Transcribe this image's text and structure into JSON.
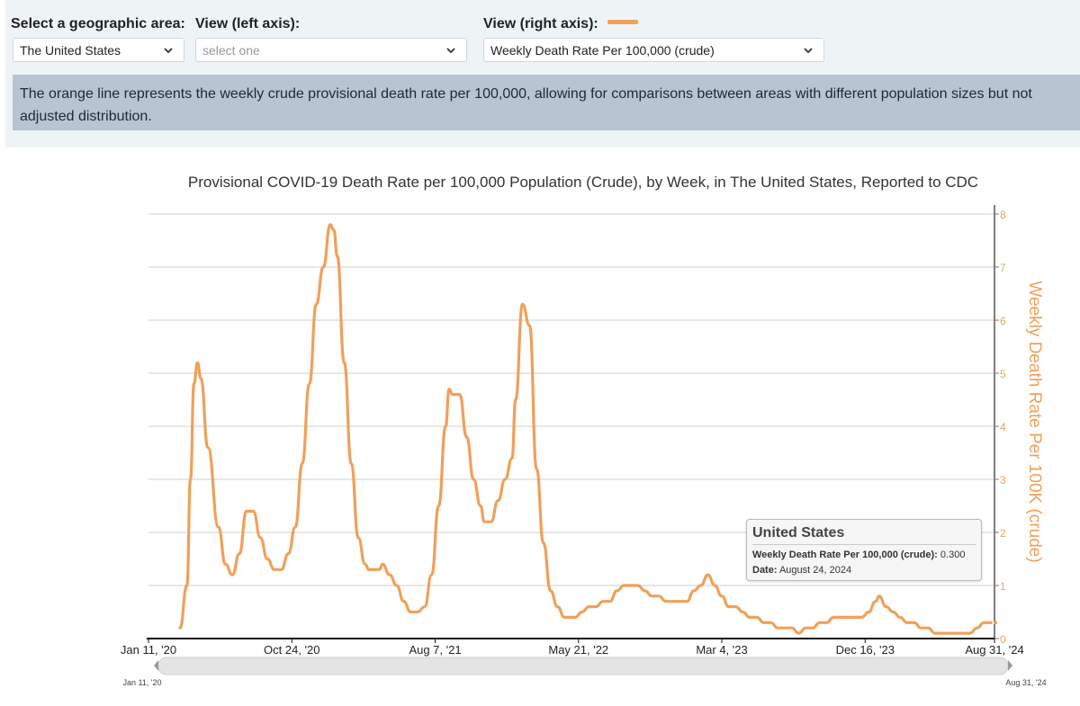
{
  "controls": {
    "geo_label": "Select a geographic area:",
    "geo_value": "The United States",
    "left_label": "View (left axis):",
    "left_placeholder": "select one",
    "right_label": "View (right axis):",
    "right_value": "Weekly Death Rate Per 100,000 (crude)"
  },
  "info_text": "The orange line represents the weekly crude provisional death rate per 100,000, allowing for comparisons between areas with different population sizes but not adjusted distribution.",
  "colors": {
    "line": "#f0a05a",
    "axis_title": "#f0a05a"
  },
  "tooltip": {
    "title": "United States",
    "metric_label": "Weekly Death Rate Per 100,000 (crude):",
    "metric_value": "0.300",
    "date_label": "Date:",
    "date_value": "August 24, 2024"
  },
  "slider": {
    "start_label": "Jan 11, '20",
    "end_label": "Aug 31, '24"
  },
  "chart_data": {
    "type": "line",
    "title": "Provisional COVID-19 Death Rate per 100,000 Population (Crude), by Week, in The United States, Reported to CDC",
    "ylabel": "Weekly Death Rate Per 100K (crude)",
    "xlabel": "",
    "ylim": [
      0,
      8
    ],
    "y_ticks": [
      "0",
      "1",
      "2",
      "3",
      "4",
      "5",
      "6",
      "7",
      "8"
    ],
    "x_domain": [
      "2020-01-11",
      "2024-08-31"
    ],
    "x_ticks": [
      {
        "label": "Jan 11, '20",
        "date": "2020-01-11"
      },
      {
        "label": "Oct 24, '20",
        "date": "2020-10-24"
      },
      {
        "label": "Aug 7, '21",
        "date": "2021-08-07"
      },
      {
        "label": "May 21, '22",
        "date": "2022-05-21"
      },
      {
        "label": "Mar 4, '23",
        "date": "2023-03-04"
      },
      {
        "label": "Dec 16, '23",
        "date": "2023-12-16"
      },
      {
        "label": "Aug 31, '24",
        "date": "2024-08-31"
      }
    ],
    "grid": true,
    "series": [
      {
        "name": "Weekly Death Rate Per 100,000 (crude)",
        "points": [
          [
            "2020-03-14",
            0.2
          ],
          [
            "2020-03-28",
            1.0
          ],
          [
            "2020-04-04",
            3.0
          ],
          [
            "2020-04-11",
            4.8
          ],
          [
            "2020-04-18",
            5.2
          ],
          [
            "2020-04-25",
            4.9
          ],
          [
            "2020-05-09",
            3.6
          ],
          [
            "2020-05-30",
            2.1
          ],
          [
            "2020-06-13",
            1.4
          ],
          [
            "2020-06-27",
            1.2
          ],
          [
            "2020-07-11",
            1.6
          ],
          [
            "2020-07-25",
            2.4
          ],
          [
            "2020-08-08",
            2.4
          ],
          [
            "2020-08-22",
            1.9
          ],
          [
            "2020-09-05",
            1.5
          ],
          [
            "2020-09-19",
            1.3
          ],
          [
            "2020-10-03",
            1.3
          ],
          [
            "2020-10-17",
            1.6
          ],
          [
            "2020-10-31",
            2.1
          ],
          [
            "2020-11-14",
            3.3
          ],
          [
            "2020-11-28",
            4.8
          ],
          [
            "2020-12-12",
            6.3
          ],
          [
            "2020-12-26",
            7.0
          ],
          [
            "2021-01-09",
            7.8
          ],
          [
            "2021-01-16",
            7.7
          ],
          [
            "2021-01-23",
            7.2
          ],
          [
            "2021-02-06",
            5.2
          ],
          [
            "2021-02-20",
            3.3
          ],
          [
            "2021-03-06",
            1.9
          ],
          [
            "2021-03-20",
            1.4
          ],
          [
            "2021-03-27",
            1.3
          ],
          [
            "2021-04-17",
            1.3
          ],
          [
            "2021-04-24",
            1.4
          ],
          [
            "2021-05-08",
            1.2
          ],
          [
            "2021-05-22",
            1.0
          ],
          [
            "2021-06-05",
            0.7
          ],
          [
            "2021-06-19",
            0.5
          ],
          [
            "2021-07-03",
            0.5
          ],
          [
            "2021-07-17",
            0.6
          ],
          [
            "2021-07-31",
            1.2
          ],
          [
            "2021-08-14",
            2.5
          ],
          [
            "2021-08-28",
            4.0
          ],
          [
            "2021-09-04",
            4.7
          ],
          [
            "2021-09-11",
            4.6
          ],
          [
            "2021-09-25",
            4.6
          ],
          [
            "2021-10-09",
            3.8
          ],
          [
            "2021-10-23",
            3.0
          ],
          [
            "2021-11-06",
            2.5
          ],
          [
            "2021-11-13",
            2.2
          ],
          [
            "2021-11-27",
            2.2
          ],
          [
            "2021-12-11",
            2.6
          ],
          [
            "2021-12-25",
            3.0
          ],
          [
            "2022-01-08",
            3.4
          ],
          [
            "2022-01-15",
            4.5
          ],
          [
            "2022-01-29",
            6.3
          ],
          [
            "2022-02-12",
            5.9
          ],
          [
            "2022-02-26",
            3.2
          ],
          [
            "2022-03-12",
            1.8
          ],
          [
            "2022-03-26",
            0.9
          ],
          [
            "2022-04-09",
            0.6
          ],
          [
            "2022-04-23",
            0.4
          ],
          [
            "2022-05-14",
            0.4
          ],
          [
            "2022-05-28",
            0.5
          ],
          [
            "2022-06-11",
            0.6
          ],
          [
            "2022-06-25",
            0.6
          ],
          [
            "2022-07-09",
            0.7
          ],
          [
            "2022-07-23",
            0.7
          ],
          [
            "2022-08-06",
            0.9
          ],
          [
            "2022-08-20",
            1.0
          ],
          [
            "2022-09-17",
            1.0
          ],
          [
            "2022-10-01",
            0.9
          ],
          [
            "2022-10-15",
            0.8
          ],
          [
            "2022-10-29",
            0.8
          ],
          [
            "2022-11-12",
            0.7
          ],
          [
            "2022-11-26",
            0.7
          ],
          [
            "2022-12-10",
            0.7
          ],
          [
            "2022-12-24",
            0.7
          ],
          [
            "2023-01-07",
            0.9
          ],
          [
            "2023-01-21",
            1.0
          ],
          [
            "2023-02-04",
            1.2
          ],
          [
            "2023-02-18",
            1.0
          ],
          [
            "2023-03-04",
            0.8
          ],
          [
            "2023-03-18",
            0.6
          ],
          [
            "2023-04-01",
            0.6
          ],
          [
            "2023-04-15",
            0.5
          ],
          [
            "2023-04-29",
            0.4
          ],
          [
            "2023-05-13",
            0.4
          ],
          [
            "2023-05-27",
            0.3
          ],
          [
            "2023-06-10",
            0.3
          ],
          [
            "2023-06-24",
            0.2
          ],
          [
            "2023-07-22",
            0.2
          ],
          [
            "2023-08-05",
            0.1
          ],
          [
            "2023-08-19",
            0.2
          ],
          [
            "2023-09-02",
            0.2
          ],
          [
            "2023-09-16",
            0.3
          ],
          [
            "2023-09-30",
            0.3
          ],
          [
            "2023-10-14",
            0.4
          ],
          [
            "2023-10-28",
            0.4
          ],
          [
            "2023-11-25",
            0.4
          ],
          [
            "2023-12-09",
            0.4
          ],
          [
            "2023-12-23",
            0.5
          ],
          [
            "2024-01-06",
            0.7
          ],
          [
            "2024-01-13",
            0.8
          ],
          [
            "2024-01-27",
            0.6
          ],
          [
            "2024-02-10",
            0.5
          ],
          [
            "2024-02-24",
            0.4
          ],
          [
            "2024-03-09",
            0.3
          ],
          [
            "2024-03-23",
            0.3
          ],
          [
            "2024-04-06",
            0.2
          ],
          [
            "2024-04-20",
            0.2
          ],
          [
            "2024-05-04",
            0.1
          ],
          [
            "2024-06-01",
            0.1
          ],
          [
            "2024-06-29",
            0.1
          ],
          [
            "2024-07-13",
            0.1
          ],
          [
            "2024-07-27",
            0.2
          ],
          [
            "2024-08-10",
            0.3
          ],
          [
            "2024-08-24",
            0.3
          ]
        ]
      }
    ]
  }
}
